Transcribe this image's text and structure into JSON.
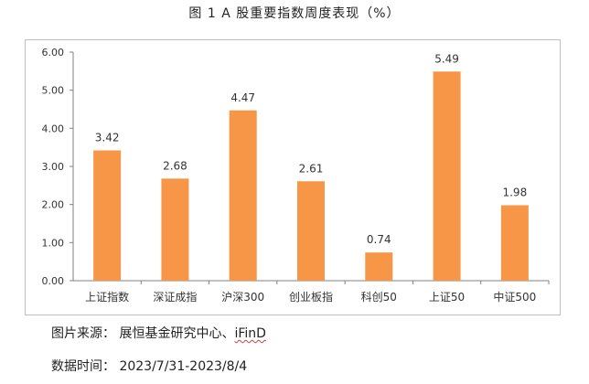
{
  "title": "图 1 A 股重要指数周度表现（%）",
  "chart_data": {
    "type": "bar",
    "categories": [
      "上证指数",
      "深证成指",
      "沪深300",
      "创业板指",
      "科创50",
      "上证50",
      "中证500"
    ],
    "values": [
      3.42,
      2.68,
      4.47,
      2.61,
      0.74,
      5.49,
      1.98
    ],
    "value_labels": [
      "3.42",
      "2.68",
      "4.47",
      "2.61",
      "0.74",
      "5.49",
      "1.98"
    ],
    "yticks": [
      "0.00",
      "1.00",
      "2.00",
      "3.00",
      "4.00",
      "5.00",
      "6.00"
    ],
    "ylim": [
      0,
      6
    ],
    "bar_color": "#F79646",
    "grid": false,
    "legend": false
  },
  "footer": {
    "source_label": "图片来源：",
    "source_value_prefix": "展恒基金研究中心、",
    "source_value_brand": "iFinD",
    "time_label": "数据时间：",
    "time_value": "2023/7/31-2023/8/4"
  }
}
